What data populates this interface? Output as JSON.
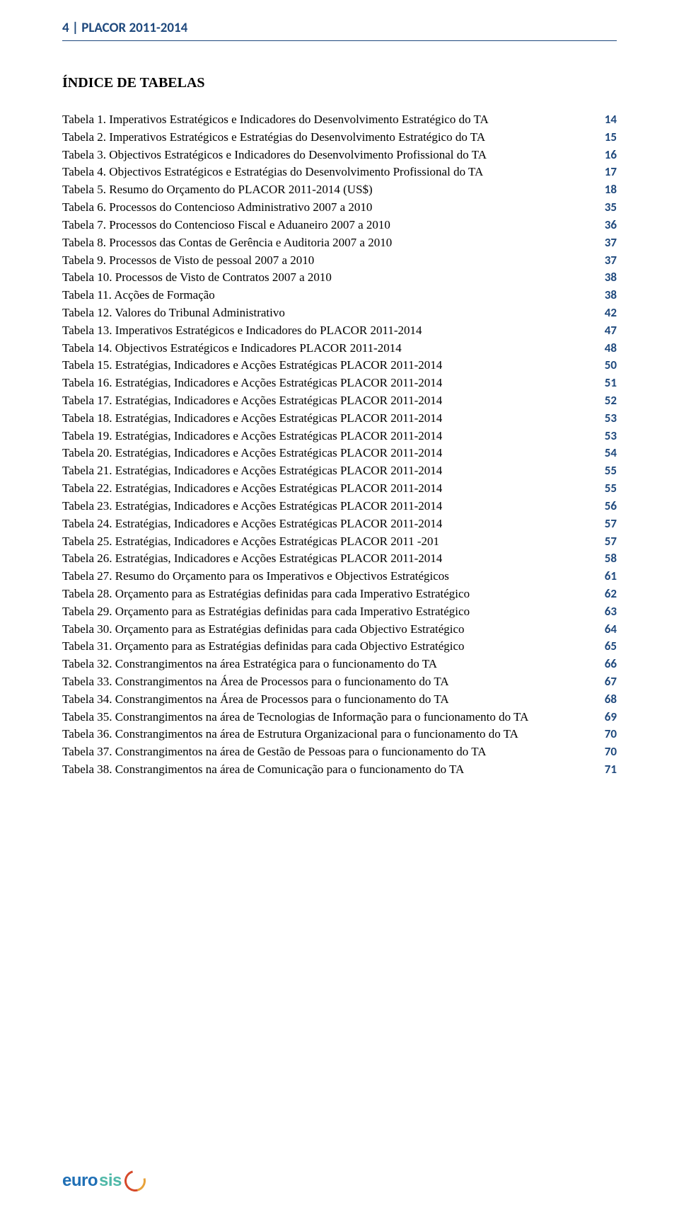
{
  "header": "4 | PLACOR 2011-2014",
  "section_title": "ÍNDICE  DE TABELAS",
  "text_color": "#000000",
  "accent_color": "#1f497d",
  "background_color": "#ffffff",
  "body_font": "Times New Roman",
  "accent_font": "Calibri",
  "body_fontsize": 17,
  "title_fontsize": 20,
  "header_fontsize": 19,
  "logo": {
    "part1": "euro",
    "part1_color": "#1f6fb5",
    "part2": "sis",
    "part2_color": "#4fb8a8",
    "swirl_colors": [
      "#d6492a",
      "#e8a23a"
    ]
  },
  "entries": [
    {
      "text": "Tabela 1. Imperativos Estratégicos e Indicadores do Desenvolvimento Estratégico do TA",
      "page": "14"
    },
    {
      "text": "Tabela 2. Imperativos Estratégicos e Estratégias do Desenvolvimento Estratégico do TA",
      "page": "15"
    },
    {
      "text": "Tabela 3. Objectivos Estratégicos e Indicadores do Desenvolvimento Profissional do TA",
      "page": "16"
    },
    {
      "text": "Tabela 4. Objectivos Estratégicos e Estratégias do Desenvolvimento Profissional do TA",
      "page": "17"
    },
    {
      "text": "Tabela 5. Resumo do Orçamento do PLACOR 2011-2014 (US$)",
      "page": "18"
    },
    {
      "text": "Tabela 6. Processos do Contencioso Administrativo 2007 a 2010",
      "page": "35"
    },
    {
      "text": "Tabela 7. Processos do Contencioso Fiscal e Aduaneiro 2007 a 2010",
      "page": "36"
    },
    {
      "text": "Tabela 8. Processos das Contas de Gerência e Auditoria 2007 a 2010",
      "page": "37"
    },
    {
      "text": "Tabela 9. Processos de Visto de pessoal 2007 a 2010",
      "page": "37"
    },
    {
      "text": "Tabela 10. Processos de Visto de Contratos 2007 a 2010",
      "page": "38"
    },
    {
      "text": "Tabela 11. Acções de Formação",
      "page": "38"
    },
    {
      "text": "Tabela 12. Valores do Tribunal Administrativo",
      "page": "42"
    },
    {
      "text": "Tabela 13. Imperativos Estratégicos e Indicadores do PLACOR 2011-2014",
      "page": "47"
    },
    {
      "text": "Tabela 14. Objectivos Estratégicos e Indicadores PLACOR 2011-2014",
      "page": "48"
    },
    {
      "text": "Tabela 15. Estratégias, Indicadores e Acções Estratégicas PLACOR 2011-2014",
      "page": "50"
    },
    {
      "text": "Tabela 16. Estratégias, Indicadores e Acções Estratégicas PLACOR 2011-2014",
      "page": "51"
    },
    {
      "text": "Tabela 17. Estratégias, Indicadores e Acções Estratégicas PLACOR 2011-2014",
      "page": "52"
    },
    {
      "text": "Tabela 18. Estratégias, Indicadores e Acções Estratégicas PLACOR 2011-2014",
      "page": "53"
    },
    {
      "text": "Tabela 19. Estratégias, Indicadores e Acções Estratégicas PLACOR 2011-2014",
      "page": "53"
    },
    {
      "text": "Tabela 20. Estratégias, Indicadores e Acções Estratégicas PLACOR 2011-2014",
      "page": "54"
    },
    {
      "text": "Tabela 21. Estratégias, Indicadores e Acções Estratégicas PLACOR 2011-2014",
      "page": "55"
    },
    {
      "text": "Tabela 22. Estratégias, Indicadores e Acções Estratégicas  PLACOR 2011-2014",
      "page": "55"
    },
    {
      "text": "Tabela 23. Estratégias, Indicadores e Acções Estratégicas PLACOR 2011-2014",
      "page": "56"
    },
    {
      "text": "Tabela 24. Estratégias, Indicadores e Acções Estratégicas PLACOR 2011-2014",
      "page": "57"
    },
    {
      "text": "Tabela 25. Estratégias, Indicadores e Acções Estratégicas PLACOR 2011 -201",
      "page": "57"
    },
    {
      "text": "Tabela 26. Estratégias, Indicadores e Acções Estratégicas PLACOR 2011-2014",
      "page": "58"
    },
    {
      "text": "Tabela 27. Resumo do Orçamento para os Imperativos e Objectivos Estratégicos",
      "page": "61"
    },
    {
      "text": "Tabela 28. Orçamento para as Estratégias definidas para cada Imperativo Estratégico",
      "page": "62"
    },
    {
      "text": "Tabela 29. Orçamento para as Estratégias definidas para cada Imperativo Estratégico",
      "page": "63"
    },
    {
      "text": "Tabela 30. Orçamento para as Estratégias definidas para cada Objectivo Estratégico",
      "page": "64"
    },
    {
      "text": "Tabela 31. Orçamento para as Estratégias definidas para cada Objectivo Estratégico",
      "page": "65"
    },
    {
      "text": "Tabela 32. Constrangimentos na área Estratégica para o funcionamento do TA",
      "page": "66"
    },
    {
      "text": "Tabela 33. Constrangimentos na Área de Processos para o funcionamento do TA",
      "page": "67"
    },
    {
      "text": "Tabela 34. Constrangimentos na Área de Processos para o funcionamento do TA",
      "page": "68"
    },
    {
      "text": "Tabela 35. Constrangimentos na área de Tecnologias de Informação para o funcionamento do TA",
      "page": "69",
      "wrap": true
    },
    {
      "text": "Tabela 36. Constrangimentos na área de Estrutura Organizacional para o funcionamento do TA",
      "page": "70"
    },
    {
      "text": "Tabela 37. Constrangimentos na área de Gestão de Pessoas para o funcionamento do TA",
      "page": "70"
    },
    {
      "text": "Tabela 38. Constrangimentos na área de Comunicação para o funcionamento do TA",
      "page": "71"
    }
  ]
}
